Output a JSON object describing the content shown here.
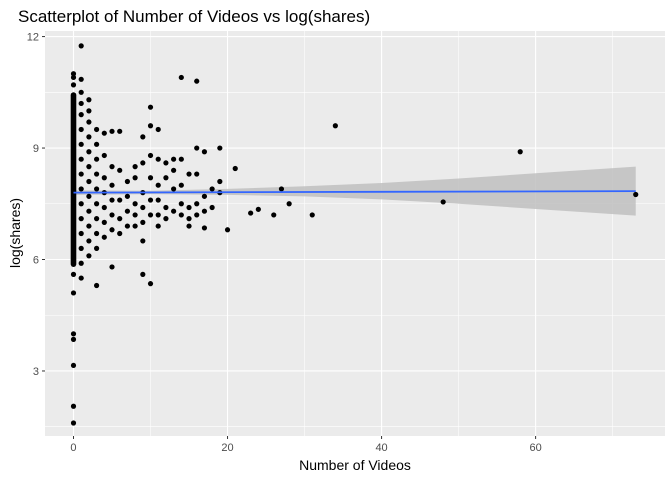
{
  "chart_data": {
    "type": "scatter",
    "title": "Scatterplot of Number of Videos vs log(shares)",
    "xlabel": "Number of Videos",
    "ylabel": "log(shares)",
    "xlim": [
      -3.7,
      76.8
    ],
    "ylim": [
      1.25,
      12.15
    ],
    "x_ticks": [
      0,
      20,
      40,
      60
    ],
    "x_tick_labels": [
      "0",
      "20",
      "40",
      "60"
    ],
    "y_ticks": [
      3,
      6,
      9,
      12
    ],
    "y_tick_labels": [
      "3",
      "6",
      "9",
      "12"
    ],
    "grid": true,
    "legend": "none",
    "colors": {
      "panel": "#ebebeb",
      "grid_major": "#ffffff",
      "points": "#000000",
      "fit_line": "#3366ff",
      "confidence_band": "#bfbfbf"
    },
    "fit": {
      "method": "linear regression with confidence band",
      "line": {
        "x": [
          0,
          73
        ],
        "y": [
          7.8,
          7.84
        ]
      },
      "band_upper": [
        [
          0,
          7.86
        ],
        [
          10,
          7.85
        ],
        [
          20,
          7.9
        ],
        [
          30,
          7.97
        ],
        [
          40,
          8.06
        ],
        [
          50,
          8.18
        ],
        [
          60,
          8.32
        ],
        [
          73,
          8.5
        ]
      ],
      "band_lower": [
        [
          0,
          7.74
        ],
        [
          10,
          7.76
        ],
        [
          20,
          7.74
        ],
        [
          30,
          7.7
        ],
        [
          40,
          7.62
        ],
        [
          50,
          7.5
        ],
        [
          60,
          7.36
        ],
        [
          73,
          7.18
        ]
      ]
    },
    "x_zero_column": {
      "x": 0,
      "y_from": 5.8,
      "y_to": 10.5,
      "note": "dense overlapping points"
    },
    "points": [
      [
        0,
        11.0
      ],
      [
        0,
        10.9
      ],
      [
        0,
        10.7
      ],
      [
        0,
        5.6
      ],
      [
        0,
        5.1
      ],
      [
        0,
        4.0
      ],
      [
        0,
        3.85
      ],
      [
        0,
        3.15
      ],
      [
        0,
        2.05
      ],
      [
        0,
        1.6
      ],
      [
        1,
        11.75
      ],
      [
        1,
        10.85
      ],
      [
        1,
        10.5
      ],
      [
        1,
        10.2
      ],
      [
        1,
        9.9
      ],
      [
        1,
        9.5
      ],
      [
        1,
        9.1
      ],
      [
        1,
        8.7
      ],
      [
        1,
        8.3
      ],
      [
        1,
        7.9
      ],
      [
        1,
        7.5
      ],
      [
        1,
        7.1
      ],
      [
        1,
        6.7
      ],
      [
        1,
        6.3
      ],
      [
        1,
        5.9
      ],
      [
        1,
        5.5
      ],
      [
        2,
        10.3
      ],
      [
        2,
        10.0
      ],
      [
        2,
        9.7
      ],
      [
        2,
        9.3
      ],
      [
        2,
        8.9
      ],
      [
        2,
        8.5
      ],
      [
        2,
        8.1
      ],
      [
        2,
        7.7
      ],
      [
        2,
        7.3
      ],
      [
        2,
        6.9
      ],
      [
        2,
        6.5
      ],
      [
        2,
        6.1
      ],
      [
        3,
        9.5
      ],
      [
        3,
        9.1
      ],
      [
        3,
        8.7
      ],
      [
        3,
        8.3
      ],
      [
        3,
        7.9
      ],
      [
        3,
        7.5
      ],
      [
        3,
        7.1
      ],
      [
        3,
        6.7
      ],
      [
        3,
        6.3
      ],
      [
        3,
        5.3
      ],
      [
        4,
        9.4
      ],
      [
        4,
        8.8
      ],
      [
        4,
        8.2
      ],
      [
        4,
        7.8
      ],
      [
        4,
        7.4
      ],
      [
        4,
        7.0
      ],
      [
        4,
        6.6
      ],
      [
        5,
        9.45
      ],
      [
        5,
        8.5
      ],
      [
        5,
        8.0
      ],
      [
        5,
        7.6
      ],
      [
        5,
        7.2
      ],
      [
        5,
        6.8
      ],
      [
        5,
        5.8
      ],
      [
        6,
        9.45
      ],
      [
        6,
        8.4
      ],
      [
        6,
        7.6
      ],
      [
        6,
        7.1
      ],
      [
        6,
        6.7
      ],
      [
        7,
        8.1
      ],
      [
        7,
        7.7
      ],
      [
        7,
        7.3
      ],
      [
        7,
        6.9
      ],
      [
        8,
        8.5
      ],
      [
        8,
        8.2
      ],
      [
        8,
        7.5
      ],
      [
        8,
        7.2
      ],
      [
        8,
        6.9
      ],
      [
        9,
        9.3
      ],
      [
        9,
        8.6
      ],
      [
        9,
        7.8
      ],
      [
        9,
        7.4
      ],
      [
        9,
        7.0
      ],
      [
        9,
        6.5
      ],
      [
        9,
        5.6
      ],
      [
        10,
        10.1
      ],
      [
        10,
        9.6
      ],
      [
        10,
        8.8
      ],
      [
        10,
        8.2
      ],
      [
        10,
        7.6
      ],
      [
        10,
        7.2
      ],
      [
        10,
        5.35
      ],
      [
        11,
        9.5
      ],
      [
        11,
        8.7
      ],
      [
        11,
        8.0
      ],
      [
        11,
        7.6
      ],
      [
        11,
        7.2
      ],
      [
        11,
        6.9
      ],
      [
        12,
        8.6
      ],
      [
        12,
        8.2
      ],
      [
        12,
        7.4
      ],
      [
        12,
        7.1
      ],
      [
        13,
        8.7
      ],
      [
        13,
        8.4
      ],
      [
        13,
        7.9
      ],
      [
        13,
        7.3
      ],
      [
        14,
        10.9
      ],
      [
        14,
        8.7
      ],
      [
        14,
        8.0
      ],
      [
        14,
        7.5
      ],
      [
        14,
        7.2
      ],
      [
        15,
        8.3
      ],
      [
        15,
        7.4
      ],
      [
        15,
        7.1
      ],
      [
        15,
        6.9
      ],
      [
        16,
        10.8
      ],
      [
        16,
        9.0
      ],
      [
        16,
        8.3
      ],
      [
        16,
        7.5
      ],
      [
        16,
        7.2
      ],
      [
        17,
        8.9
      ],
      [
        17,
        7.7
      ],
      [
        17,
        7.3
      ],
      [
        17,
        6.85
      ],
      [
        18,
        7.9
      ],
      [
        18,
        7.4
      ],
      [
        19,
        9.0
      ],
      [
        19,
        8.1
      ],
      [
        19,
        7.8
      ],
      [
        20,
        6.8
      ],
      [
        21,
        8.45
      ],
      [
        23,
        7.25
      ],
      [
        24,
        7.35
      ],
      [
        26,
        7.2
      ],
      [
        27,
        7.9
      ],
      [
        28,
        7.5
      ],
      [
        31,
        7.2
      ],
      [
        34,
        9.6
      ],
      [
        48,
        7.55
      ],
      [
        58,
        8.9
      ],
      [
        73,
        7.75
      ]
    ]
  }
}
